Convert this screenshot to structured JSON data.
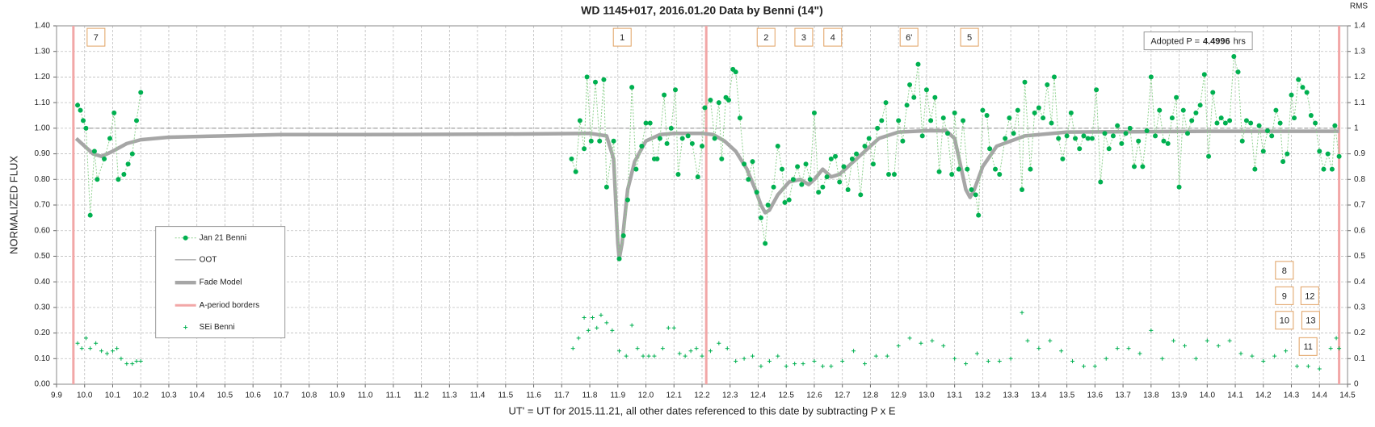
{
  "chart_data": {
    "type": "line",
    "title": "WD 1145+017, 2016.01.20 Data by Benni (14\")",
    "x_label": "UT' = UT for 2015.11.21, all other dates referenced to this date by subtracting P x E",
    "y_label": "NORMALIZED FLUX",
    "y2_label": "RMS",
    "grid": true,
    "xlim": [
      9.9,
      14.5
    ],
    "ylim": [
      0,
      1.4
    ],
    "y2lim": [
      0,
      1.4
    ],
    "xticks": [
      9.9,
      {
        "value": 10,
        "label": "10.0"
      },
      10.1,
      10.2,
      10.3,
      10.4,
      10.5,
      10.6,
      10.7,
      10.8,
      10.9,
      {
        "value": 11,
        "label": "11.0"
      },
      11.1,
      11.2,
      11.3,
      11.4,
      11.5,
      11.6,
      11.7,
      11.8,
      11.9,
      {
        "value": 12,
        "label": "12.0"
      },
      12.1,
      12.2,
      12.3,
      12.4,
      12.5,
      12.6,
      12.7,
      12.8,
      12.9,
      {
        "value": 13,
        "label": "13.0"
      },
      13.1,
      13.2,
      13.3,
      13.4,
      13.5,
      13.6,
      13.7,
      13.8,
      13.9,
      {
        "value": 14,
        "label": "14.0"
      },
      14.1,
      14.2,
      14.3,
      14.4,
      14.5
    ],
    "yticks": [
      {
        "value": 0,
        "label": "0.00"
      },
      {
        "value": 0.1,
        "label": "0.10"
      },
      {
        "value": 0.2,
        "label": "0.20"
      },
      {
        "value": 0.3,
        "label": "0.30"
      },
      {
        "value": 0.4,
        "label": "0.40"
      },
      {
        "value": 0.5,
        "label": "0.50"
      },
      {
        "value": 0.6,
        "label": "0.60"
      },
      {
        "value": 0.7,
        "label": "0.70"
      },
      {
        "value": 0.8,
        "label": "0.80"
      },
      {
        "value": 0.9,
        "label": "0.90"
      },
      {
        "value": 1,
        "label": "1.00"
      },
      {
        "value": 1.1,
        "label": "1.10"
      },
      {
        "value": 1.2,
        "label": "1.20"
      },
      {
        "value": 1.3,
        "label": "1.30"
      },
      {
        "value": 1.4,
        "label": "1.40"
      }
    ],
    "y2ticks": [
      0,
      0.1,
      0.2,
      0.3,
      0.4,
      0.5,
      0.6,
      0.7,
      0.8,
      0.9,
      1,
      1.1,
      1.2,
      1.3,
      1.4
    ],
    "annotations": [
      "7",
      "1",
      "2",
      "3",
      "4",
      "6'",
      "5",
      "8",
      "9",
      "12",
      "10",
      "13",
      "11"
    ],
    "period_label": {
      "prefix": "Adopted P =",
      "value": "4.4996",
      "unit": "hrs"
    },
    "series": [
      {
        "name": "Jan 21 Benni",
        "kind": "line-marker",
        "color": "#00b050",
        "x": [
          9.975,
          9.985,
          9.995,
          10.005,
          10.02,
          10.035,
          10.045,
          10.07,
          10.09,
          10.105,
          10.12,
          10.14,
          10.155,
          10.17,
          10.185,
          10.2,
          null,
          11.735,
          11.75,
          11.765,
          11.78,
          11.79,
          11.805,
          11.82,
          11.835,
          11.85,
          11.86,
          11.885,
          11.905,
          11.92,
          11.935,
          11.95,
          11.965,
          11.985,
          12.0,
          12.015,
          12.03,
          12.04,
          12.05,
          12.065,
          12.075,
          12.09,
          12.105,
          12.115,
          12.13,
          12.15,
          12.165,
          12.185,
          12.2,
          12.21,
          12.23,
          12.245,
          12.26,
          12.27,
          12.285,
          12.295,
          12.31,
          12.32,
          12.335,
          12.35,
          12.365,
          12.38,
          12.395,
          12.41,
          12.425,
          12.435,
          12.455,
          12.47,
          12.485,
          12.495,
          12.51,
          12.525,
          12.54,
          12.555,
          12.57,
          12.585,
          12.6,
          12.615,
          12.63,
          12.645,
          12.66,
          12.675,
          12.69,
          12.705,
          12.72,
          12.735,
          12.75,
          12.765,
          12.78,
          12.795,
          12.81,
          12.825,
          12.84,
          12.855,
          12.865,
          12.885,
          12.9,
          12.915,
          12.93,
          12.94,
          12.955,
          12.97,
          12.985,
          13.0,
          13.015,
          13.03,
          13.045,
          13.06,
          13.075,
          13.09,
          13.1,
          13.115,
          13.13,
          13.145,
          13.16,
          13.175,
          13.185,
          13.2,
          13.215,
          13.225,
          13.245,
          13.26,
          13.28,
          13.295,
          13.31,
          13.325,
          13.34,
          13.35,
          13.37,
          13.385,
          13.4,
          13.415,
          13.43,
          13.445,
          13.455,
          13.47,
          13.485,
          13.5,
          13.515,
          13.53,
          13.545,
          13.56,
          13.575,
          13.59,
          13.605,
          13.62,
          13.635,
          13.65,
          13.665,
          13.68,
          13.695,
          13.71,
          13.725,
          13.74,
          13.755,
          13.77,
          13.785,
          13.8,
          13.815,
          13.83,
          13.845,
          13.86,
          13.875,
          13.89,
          13.9,
          13.915,
          13.93,
          13.945,
          13.96,
          13.975,
          13.99,
          14.005,
          14.02,
          14.035,
          14.05,
          14.065,
          14.08,
          14.095,
          14.11,
          14.125,
          14.14,
          14.155,
          14.17,
          14.185,
          14.2,
          14.215,
          14.23,
          14.245,
          14.26,
          14.27,
          14.285,
          14.3,
          14.31,
          14.325,
          14.34,
          14.355,
          14.37,
          14.385,
          14.4,
          14.415,
          14.43,
          14.445,
          14.455,
          14.47
        ],
        "values": [
          1.09,
          1.07,
          1.03,
          1.0,
          0.66,
          0.91,
          0.8,
          0.88,
          0.96,
          1.06,
          0.8,
          0.82,
          0.86,
          0.9,
          1.03,
          1.14,
          null,
          0.88,
          0.83,
          1.03,
          0.92,
          1.2,
          0.95,
          1.18,
          0.95,
          1.19,
          0.77,
          0.95,
          0.49,
          0.58,
          0.72,
          1.16,
          0.84,
          0.93,
          1.02,
          1.02,
          0.88,
          0.88,
          0.96,
          1.13,
          0.94,
          1.0,
          1.15,
          0.82,
          0.96,
          0.97,
          0.94,
          0.81,
          0.93,
          1.08,
          1.11,
          0.96,
          1.1,
          0.88,
          1.12,
          1.11,
          1.23,
          1.22,
          1.04,
          0.86,
          0.8,
          0.87,
          0.75,
          0.65,
          0.55,
          0.7,
          0.77,
          0.93,
          0.84,
          0.71,
          0.72,
          0.8,
          0.85,
          0.78,
          0.86,
          0.8,
          1.06,
          0.75,
          0.77,
          0.81,
          0.88,
          0.89,
          0.79,
          0.85,
          0.76,
          0.88,
          0.9,
          0.74,
          0.93,
          0.96,
          0.86,
          1.0,
          1.03,
          1.1,
          0.82,
          0.82,
          1.03,
          0.95,
          1.09,
          1.17,
          1.12,
          1.25,
          0.97,
          1.15,
          1.03,
          1.12,
          0.83,
          1.04,
          0.98,
          0.82,
          1.06,
          0.84,
          1.03,
          0.84,
          0.76,
          0.74,
          0.66,
          1.07,
          1.05,
          0.92,
          0.84,
          0.82,
          0.96,
          1.04,
          0.98,
          1.07,
          0.76,
          1.18,
          0.84,
          1.06,
          1.08,
          1.04,
          1.17,
          1.02,
          1.2,
          0.96,
          0.88,
          0.97,
          1.06,
          0.96,
          0.92,
          0.97,
          0.96,
          0.96,
          1.15,
          0.79,
          0.98,
          0.92,
          0.97,
          1.01,
          0.94,
          0.98,
          1.0,
          0.85,
          0.95,
          0.85,
          0.99,
          1.2,
          0.97,
          1.07,
          0.95,
          0.94,
          1.04,
          1.12,
          0.77,
          1.07,
          0.98,
          1.03,
          1.06,
          1.09,
          1.21,
          0.89,
          1.14,
          1.02,
          1.04,
          1.02,
          1.03,
          1.28,
          1.22,
          0.95,
          1.03,
          1.02,
          0.84,
          1.01,
          0.91,
          0.99,
          0.97,
          1.07,
          1.02,
          0.87,
          0.9,
          1.13,
          1.04,
          1.19,
          1.16,
          1.14,
          1.05,
          1.02,
          0.91,
          0.84,
          0.9,
          0.84,
          1.01,
          0.89
        ]
      },
      {
        "name": "OOT",
        "kind": "line",
        "color": "#8c8c8c",
        "x": [
          9.97,
          14.47
        ],
        "values": [
          1.0,
          1.0
        ]
      },
      {
        "name": "Fade Model",
        "kind": "line",
        "color": "#a6a6a6",
        "x": [
          9.97,
          10.0,
          10.03,
          10.06,
          10.1,
          10.15,
          10.2,
          10.3,
          10.5,
          10.7,
          11.0,
          11.5,
          11.8,
          11.86,
          11.885,
          11.9,
          11.905,
          11.915,
          11.935,
          11.96,
          12.0,
          12.05,
          12.1,
          12.2,
          12.24,
          12.28,
          12.32,
          12.36,
          12.39,
          12.41,
          12.425,
          12.44,
          12.47,
          12.51,
          12.55,
          12.58,
          12.6,
          12.63,
          12.66,
          12.69,
          12.73,
          12.78,
          12.83,
          12.9,
          13.0,
          13.07,
          13.1,
          13.12,
          13.14,
          13.155,
          13.17,
          13.2,
          13.25,
          13.35,
          13.5,
          14.0,
          14.47
        ],
        "values": [
          0.96,
          0.93,
          0.9,
          0.89,
          0.91,
          0.94,
          0.955,
          0.965,
          0.97,
          0.975,
          0.975,
          0.977,
          0.98,
          0.97,
          0.88,
          0.55,
          0.49,
          0.55,
          0.76,
          0.87,
          0.95,
          0.975,
          0.98,
          0.98,
          0.975,
          0.95,
          0.91,
          0.84,
          0.76,
          0.7,
          0.67,
          0.68,
          0.74,
          0.79,
          0.8,
          0.78,
          0.8,
          0.84,
          0.81,
          0.82,
          0.86,
          0.91,
          0.96,
          0.985,
          0.99,
          0.99,
          0.96,
          0.86,
          0.76,
          0.73,
          0.76,
          0.85,
          0.93,
          0.97,
          0.985,
          0.988,
          0.988
        ]
      },
      {
        "name": "A-period borders",
        "kind": "vline",
        "color": "#f2a7a7",
        "x": [
          9.96,
          12.215,
          14.47
        ]
      },
      {
        "name": "SEi Benni",
        "kind": "plus",
        "color": "#00b050",
        "axis": "y2",
        "x": [
          9.975,
          9.99,
          10.005,
          10.02,
          10.04,
          10.06,
          10.08,
          10.1,
          10.115,
          10.13,
          10.15,
          10.17,
          10.185,
          10.2,
          11.74,
          11.76,
          11.78,
          11.795,
          11.81,
          11.825,
          11.84,
          11.86,
          11.88,
          11.905,
          11.93,
          11.95,
          11.97,
          11.99,
          12.01,
          12.03,
          12.06,
          12.08,
          12.1,
          12.12,
          12.14,
          12.16,
          12.18,
          12.2,
          12.23,
          12.26,
          12.29,
          12.32,
          12.35,
          12.38,
          12.41,
          12.44,
          12.47,
          12.5,
          12.53,
          12.56,
          12.6,
          12.63,
          12.66,
          12.7,
          12.74,
          12.78,
          12.82,
          12.86,
          12.9,
          12.94,
          12.98,
          13.02,
          13.06,
          13.1,
          13.14,
          13.18,
          13.22,
          13.26,
          13.3,
          13.34,
          13.36,
          13.4,
          13.44,
          13.48,
          13.52,
          13.56,
          13.6,
          13.64,
          13.68,
          13.72,
          13.76,
          13.8,
          13.84,
          13.88,
          13.92,
          13.96,
          14.0,
          14.04,
          14.08,
          14.12,
          14.16,
          14.2,
          14.24,
          14.28,
          14.32,
          14.36,
          14.4,
          14.44,
          14.46,
          14.47
        ],
        "values": [
          0.16,
          0.14,
          0.18,
          0.14,
          0.16,
          0.13,
          0.12,
          0.13,
          0.14,
          0.1,
          0.08,
          0.08,
          0.09,
          0.09,
          0.14,
          0.18,
          0.26,
          0.21,
          0.26,
          0.22,
          0.27,
          0.24,
          0.21,
          0.13,
          0.11,
          0.23,
          0.14,
          0.11,
          0.11,
          0.11,
          0.14,
          0.22,
          0.22,
          0.12,
          0.11,
          0.13,
          0.14,
          0.11,
          0.13,
          0.16,
          0.14,
          0.09,
          0.1,
          0.11,
          0.07,
          0.09,
          0.11,
          0.07,
          0.08,
          0.08,
          0.09,
          0.07,
          0.07,
          0.09,
          0.13,
          0.08,
          0.11,
          0.11,
          0.15,
          0.18,
          0.16,
          0.17,
          0.15,
          0.1,
          0.08,
          0.12,
          0.09,
          0.09,
          0.1,
          0.28,
          0.17,
          0.14,
          0.17,
          0.13,
          0.09,
          0.07,
          0.07,
          0.1,
          0.14,
          0.14,
          0.12,
          0.21,
          0.1,
          0.17,
          0.15,
          0.1,
          0.17,
          0.15,
          0.17,
          0.12,
          0.11,
          0.09,
          0.11,
          0.13,
          0.07,
          0.07,
          0.06,
          0.14,
          0.18,
          0.14
        ]
      }
    ]
  }
}
